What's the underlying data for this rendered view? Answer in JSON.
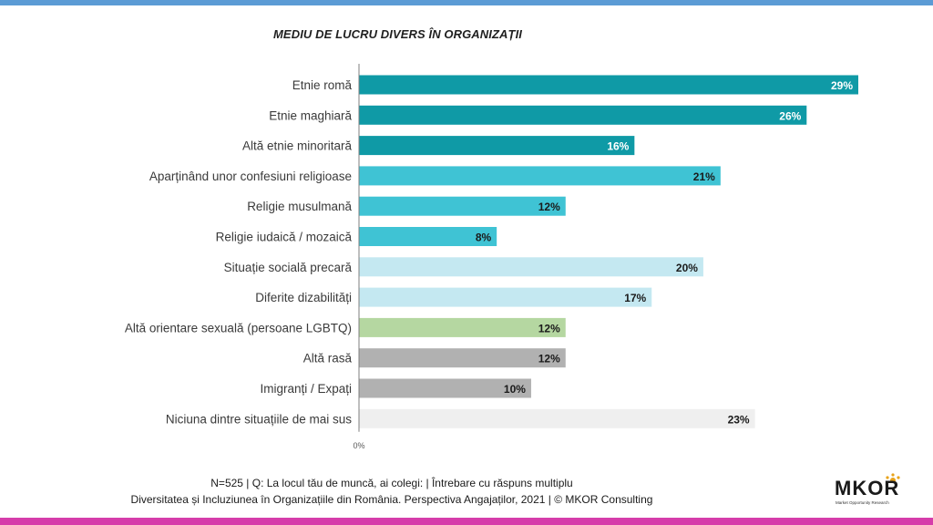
{
  "title": "MEDIU DE LUCRU DIVERS ÎN ORGANIZAȚII",
  "footer": {
    "line1": "N=525 | Q: La locul tău de muncă, ai colegi: | Întrebare cu răspuns multiplu",
    "line2": "Diversitatea și Incluziunea în Organizațiile din România. Perspectiva Angajaților, 2021 | © MKOR Consulting"
  },
  "logo": {
    "text": "MKOR",
    "subtitle": "Market Opportunity Research"
  },
  "colors": {
    "top_bar": "#5b9bd5",
    "bottom_bar": "#d63caa",
    "teal_dark": "#0f9aa6",
    "teal_mid": "#3fc3d4",
    "teal_light": "#c4e8f1",
    "green": "#b5d7a1",
    "gray": "#b1b1b1",
    "light_gray": "#efefef"
  },
  "chart_data": {
    "type": "bar",
    "orientation": "horizontal",
    "categories": [
      "Etnie romă",
      "Etnie maghiară",
      "Altă etnie minoritară",
      "Aparținând unor confesiuni religioase",
      "Religie musulmană",
      "Religie iudaică / mozaică",
      "Situație socială precară",
      "Diferite dizabilități",
      "Altă orientare sexuală (persoane LGBTQ)",
      "Altă rasă",
      "Imigranți / Expați",
      "Niciuna dintre situațiile de mai sus"
    ],
    "values": [
      29,
      26,
      16,
      21,
      12,
      8,
      20,
      17,
      12,
      12,
      10,
      23
    ],
    "value_labels": [
      "29%",
      "26%",
      "16%",
      "21%",
      "12%",
      "8%",
      "20%",
      "17%",
      "12%",
      "12%",
      "10%",
      "23%"
    ],
    "bar_colors": [
      "#0f9aa6",
      "#0f9aa6",
      "#0f9aa6",
      "#3fc3d4",
      "#3fc3d4",
      "#3fc3d4",
      "#c4e8f1",
      "#c4e8f1",
      "#b5d7a1",
      "#b1b1b1",
      "#b1b1b1",
      "#efefef"
    ],
    "label_colors": [
      "#ffffff",
      "#ffffff",
      "#ffffff",
      "#1a1a1a",
      "#1a1a1a",
      "#1a1a1a",
      "#1a1a1a",
      "#1a1a1a",
      "#1a1a1a",
      "#1a1a1a",
      "#1a1a1a",
      "#1a1a1a"
    ],
    "axis_tick_label": "0%",
    "xlim": [
      0,
      29
    ],
    "grid": false,
    "legend": "none"
  }
}
